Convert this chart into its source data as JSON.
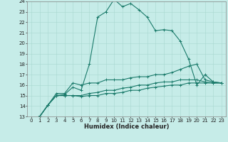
{
  "title": "",
  "xlabel": "Humidex (Indice chaleur)",
  "ylabel": "",
  "bg_color": "#c6ece8",
  "grid_color": "#a8d8d0",
  "line_color": "#1a7a6a",
  "xlim": [
    -0.5,
    23.5
  ],
  "ylim": [
    13,
    24
  ],
  "yticks": [
    13,
    14,
    15,
    16,
    17,
    18,
    19,
    20,
    21,
    22,
    23,
    24
  ],
  "xticks": [
    0,
    1,
    2,
    3,
    4,
    5,
    6,
    7,
    8,
    9,
    10,
    11,
    12,
    13,
    14,
    15,
    16,
    17,
    18,
    19,
    20,
    21,
    22,
    23
  ],
  "series": [
    {
      "x": [
        0,
        1,
        2,
        3,
        4,
        5,
        6,
        7,
        8,
        9,
        10,
        11,
        12,
        13,
        14,
        15,
        16,
        17,
        18,
        19,
        20,
        21,
        22,
        23
      ],
      "y": [
        12.8,
        13.0,
        14.1,
        15.0,
        15.1,
        15.8,
        15.5,
        18.0,
        22.5,
        23.0,
        24.2,
        23.5,
        23.8,
        23.2,
        22.5,
        21.2,
        21.3,
        21.2,
        20.2,
        18.5,
        16.0,
        17.0,
        16.3,
        16.2
      ]
    },
    {
      "x": [
        0,
        1,
        2,
        3,
        4,
        5,
        6,
        7,
        8,
        9,
        10,
        11,
        12,
        13,
        14,
        15,
        16,
        17,
        18,
        19,
        20,
        21,
        22,
        23
      ],
      "y": [
        12.8,
        13.0,
        14.1,
        15.2,
        15.2,
        16.2,
        16.0,
        16.2,
        16.2,
        16.5,
        16.5,
        16.5,
        16.7,
        16.8,
        16.8,
        17.0,
        17.0,
        17.2,
        17.5,
        17.8,
        18.0,
        16.5,
        16.3,
        16.2
      ]
    },
    {
      "x": [
        0,
        1,
        2,
        3,
        4,
        5,
        6,
        7,
        8,
        9,
        10,
        11,
        12,
        13,
        14,
        15,
        16,
        17,
        18,
        19,
        20,
        21,
        22,
        23
      ],
      "y": [
        12.8,
        13.0,
        14.1,
        15.0,
        15.0,
        15.0,
        15.0,
        15.2,
        15.3,
        15.5,
        15.5,
        15.7,
        15.8,
        16.0,
        16.0,
        16.2,
        16.3,
        16.3,
        16.5,
        16.5,
        16.5,
        16.3,
        16.2,
        16.2
      ]
    },
    {
      "x": [
        0,
        1,
        2,
        3,
        4,
        5,
        6,
        7,
        8,
        9,
        10,
        11,
        12,
        13,
        14,
        15,
        16,
        17,
        18,
        19,
        20,
        21,
        22,
        23
      ],
      "y": [
        12.8,
        13.0,
        14.1,
        15.0,
        15.0,
        15.0,
        14.9,
        15.0,
        15.0,
        15.2,
        15.2,
        15.3,
        15.5,
        15.5,
        15.7,
        15.8,
        15.9,
        16.0,
        16.0,
        16.2,
        16.2,
        16.2,
        16.2,
        16.2
      ]
    }
  ],
  "tick_fontsize": 5.0,
  "xlabel_fontsize": 6.0,
  "marker_size": 3.0,
  "linewidth": 0.8
}
